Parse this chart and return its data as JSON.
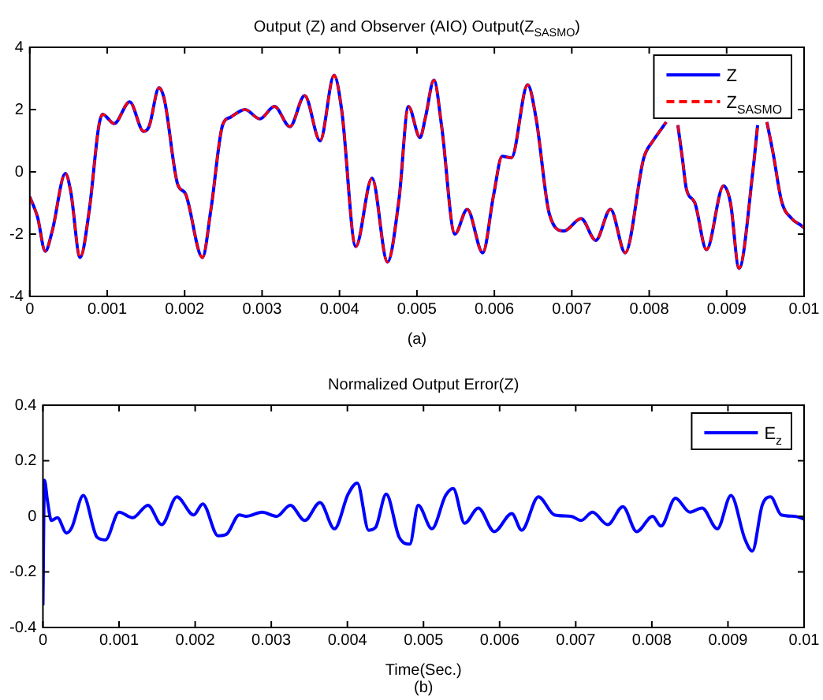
{
  "chart_data": [
    {
      "type": "line",
      "title": "Output (Z) and Observer (AIO) Output(Z$_{SASMO}$)",
      "annotations": [
        "(a)"
      ],
      "marker": "none",
      "legend": "top right",
      "grid": false,
      "x": [
        0,
        0.0001,
        0.0002,
        0.00029,
        0.00046,
        0.00053,
        0.00065,
        0.00077,
        0.00089,
        0.00094,
        0.00109,
        0.00129,
        0.00147,
        0.00154,
        0.00167,
        0.00174,
        0.00191,
        0.00201,
        0.00223,
        0.00234,
        0.00249,
        0.00259,
        0.00278,
        0.00297,
        0.00316,
        0.00336,
        0.00355,
        0.00375,
        0.00393,
        0.00403,
        0.00421,
        0.00442,
        0.00462,
        0.00477,
        0.00489,
        0.00504,
        0.00511,
        0.00522,
        0.00532,
        0.00549,
        0.00565,
        0.00585,
        0.00599,
        0.0061,
        0.00622,
        0.00643,
        0.00654,
        0.00671,
        0.0069,
        0.00712,
        0.00731,
        0.0075,
        0.00769,
        0.00793,
        0.00805,
        0.00812,
        0.00822,
        0.0083,
        0.00837,
        0.00843,
        0.00848,
        0.00859,
        0.00874,
        0.00896,
        0.00905,
        0.00916,
        0.00934,
        0.0094,
        0.00947,
        0.00952,
        0.0096,
        0.00971,
        0.00984,
        0.00995,
        0.01
      ],
      "series": [
        {
          "name": "Z",
          "color": "#0000ff",
          "line_style": "solid",
          "values": [
            -0.8,
            -1.45,
            -2.55,
            -1.9,
            -0.05,
            -0.65,
            -2.75,
            -1.2,
            1.45,
            1.85,
            1.55,
            2.25,
            1.3,
            1.45,
            2.7,
            2.3,
            -0.4,
            -0.7,
            -2.75,
            -1.2,
            1.5,
            1.75,
            2.0,
            1.7,
            2.1,
            1.45,
            2.45,
            1.0,
            3.1,
            1.95,
            -2.4,
            -0.2,
            -2.9,
            -0.85,
            2.1,
            1.1,
            1.75,
            2.95,
            1.45,
            -2.0,
            -1.2,
            -2.6,
            -0.75,
            0.5,
            0.45,
            2.8,
            1.7,
            -1.35,
            -1.9,
            -1.5,
            -2.2,
            -1.2,
            -2.6,
            0.45,
            1.0,
            1.25,
            1.6,
            null,
            1.5,
            0.4,
            -0.55,
            -1.0,
            -2.5,
            -0.45,
            -1.0,
            -3.1,
            0.05,
            1.5,
            null,
            1.6,
            0.6,
            -0.95,
            -1.5,
            -1.7,
            -1.8
          ]
        },
        {
          "name": "Z$_{SASMO}$",
          "color": "#ff0000",
          "line_style": "dashed",
          "values": [
            -0.8,
            -1.45,
            -2.55,
            -1.9,
            -0.05,
            -0.65,
            -2.75,
            -1.2,
            1.45,
            1.85,
            1.55,
            2.25,
            1.3,
            1.45,
            2.7,
            2.3,
            -0.4,
            -0.7,
            -2.75,
            -1.2,
            1.5,
            1.75,
            2.0,
            1.7,
            2.1,
            1.45,
            2.45,
            1.0,
            3.1,
            1.95,
            -2.4,
            -0.2,
            -2.9,
            -0.85,
            2.1,
            1.1,
            1.75,
            2.95,
            1.45,
            -2.0,
            -1.2,
            -2.6,
            -0.75,
            0.5,
            0.45,
            2.8,
            1.7,
            -1.35,
            -1.9,
            -1.5,
            -2.2,
            -1.2,
            -2.6,
            0.45,
            1.0,
            1.25,
            1.6,
            null,
            1.5,
            0.4,
            -0.55,
            -1.0,
            -2.5,
            -0.45,
            -1.0,
            -3.1,
            0.05,
            1.5,
            null,
            1.6,
            0.6,
            -0.95,
            -1.5,
            -1.7,
            -1.8
          ]
        }
      ],
      "xlim": [
        0,
        0.01
      ],
      "xticks": [
        0,
        0.001,
        0.002,
        0.003,
        0.004,
        0.005,
        0.006,
        0.007,
        0.008,
        0.009,
        0.01
      ],
      "ylim": [
        -4,
        4
      ],
      "yticks": [
        -4,
        -2,
        0,
        2,
        4
      ]
    },
    {
      "type": "line",
      "title": "Normalized Output Error(Z)",
      "xlabel": "Time(Sec.)",
      "annotations": [
        "(b)"
      ],
      "marker": "none",
      "legend": "top right",
      "grid": false,
      "x": [
        0,
        2e-05,
        6e-05,
        0.00011,
        0.00019,
        0.00031,
        0.00038,
        0.00053,
        0.00071,
        0.00082,
        0.001,
        0.00118,
        0.00138,
        0.00156,
        0.00176,
        0.00198,
        0.0021,
        0.0023,
        0.00241,
        0.00258,
        0.00267,
        0.00288,
        0.00307,
        0.00325,
        0.00344,
        0.00364,
        0.00383,
        0.00401,
        0.00413,
        0.00428,
        0.00437,
        0.00451,
        0.00468,
        0.00482,
        0.00493,
        0.00511,
        0.00529,
        0.00539,
        0.00554,
        0.00572,
        0.00593,
        0.00616,
        0.00629,
        0.00651,
        0.00672,
        0.00694,
        0.00707,
        0.00722,
        0.00742,
        0.00762,
        0.0078,
        0.00801,
        0.00812,
        0.00831,
        0.0085,
        0.00866,
        0.00886,
        0.00904,
        0.00922,
        0.00932,
        0.00945,
        0.00956,
        0.0097,
        0.00988,
        0.01
      ],
      "series": [
        {
          "name": "E$_{z}$",
          "color": "#0000ff",
          "line_style": "solid",
          "values": [
            -0.32,
            0.13,
            0.055,
            -0.015,
            -0.005,
            -0.06,
            -0.04,
            0.075,
            -0.075,
            -0.085,
            0.015,
            -0.005,
            0.04,
            -0.03,
            0.07,
            0.005,
            0.045,
            -0.07,
            -0.065,
            0.005,
            0,
            0.015,
            0,
            0.04,
            -0.015,
            0.05,
            -0.045,
            0.08,
            0.12,
            -0.05,
            -0.04,
            0.08,
            -0.075,
            -0.1,
            0.04,
            -0.045,
            0.075,
            0.1,
            -0.025,
            0.03,
            -0.055,
            0.01,
            -0.05,
            0.07,
            0.005,
            0,
            -0.015,
            0.015,
            -0.03,
            0.035,
            -0.055,
            0,
            -0.035,
            0.065,
            0.015,
            0.03,
            -0.045,
            0.075,
            -0.08,
            -0.125,
            0.04,
            0.07,
            0.005,
            0,
            -0.01
          ]
        }
      ],
      "xlim": [
        0,
        0.01
      ],
      "xticks": [
        0,
        0.001,
        0.002,
        0.003,
        0.004,
        0.005,
        0.006,
        0.007,
        0.008,
        0.009,
        0.01
      ],
      "ylim": [
        -0.4,
        0.4
      ],
      "yticks": [
        -0.4,
        -0.2,
        0,
        0.2,
        0.4
      ]
    }
  ]
}
